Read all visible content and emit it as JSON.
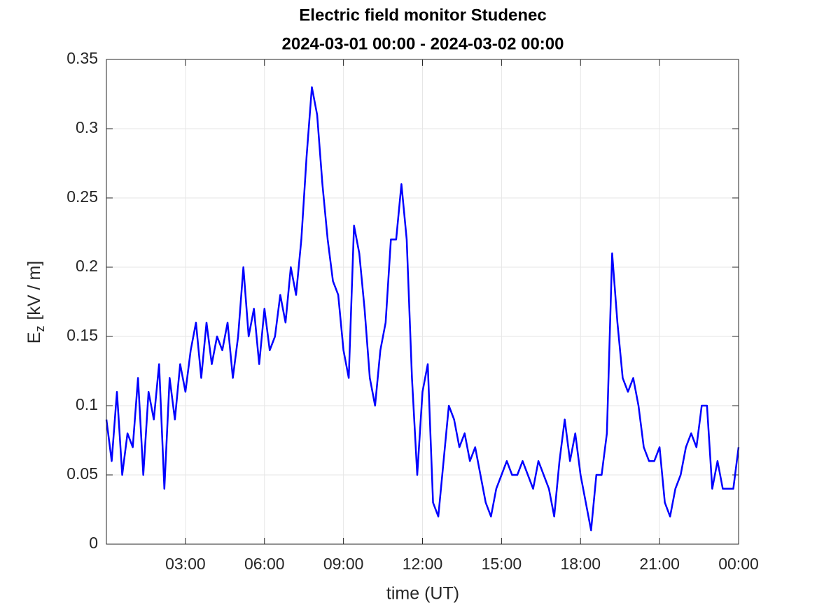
{
  "chart_data": {
    "type": "line",
    "title": "Electric field monitor Studenec",
    "subtitle": "2024-03-01 00:00 - 2024-03-02 00:00",
    "xlabel": "time (UT)",
    "ylabel_parts": [
      "E",
      "z",
      "[kV / m]"
    ],
    "color": "#0000ff",
    "grid": true,
    "xlim": [
      0,
      24
    ],
    "ylim": [
      0,
      0.35
    ],
    "xticks": [
      {
        "value": 3,
        "label": "03:00"
      },
      {
        "value": 6,
        "label": "06:00"
      },
      {
        "value": 9,
        "label": "09:00"
      },
      {
        "value": 12,
        "label": "12:00"
      },
      {
        "value": 15,
        "label": "15:00"
      },
      {
        "value": 18,
        "label": "18:00"
      },
      {
        "value": 21,
        "label": "21:00"
      },
      {
        "value": 24,
        "label": "00:00"
      }
    ],
    "yticks": [
      0,
      0.05,
      0.1,
      0.15,
      0.2,
      0.25,
      0.3,
      0.35
    ],
    "x": [
      0,
      0.2,
      0.4,
      0.6,
      0.8,
      1,
      1.2,
      1.4,
      1.6,
      1.8,
      2,
      2.2,
      2.4,
      2.6,
      2.8,
      3,
      3.2,
      3.4,
      3.6,
      3.8,
      4,
      4.2,
      4.4,
      4.6,
      4.8,
      5,
      5.2,
      5.4,
      5.6,
      5.8,
      6,
      6.2,
      6.4,
      6.6,
      6.8,
      7,
      7.2,
      7.4,
      7.6,
      7.8,
      8,
      8.2,
      8.4,
      8.6,
      8.8,
      9,
      9.2,
      9.4,
      9.6,
      9.8,
      10,
      10.2,
      10.4,
      10.6,
      10.8,
      11,
      11.2,
      11.4,
      11.6,
      11.8,
      12,
      12.2,
      12.4,
      12.6,
      12.8,
      13,
      13.2,
      13.4,
      13.6,
      13.8,
      14,
      14.2,
      14.4,
      14.6,
      14.8,
      15,
      15.2,
      15.4,
      15.6,
      15.8,
      16,
      16.2,
      16.4,
      16.6,
      16.8,
      17,
      17.2,
      17.4,
      17.6,
      17.8,
      18,
      18.2,
      18.4,
      18.6,
      18.8,
      19,
      19.2,
      19.4,
      19.6,
      19.8,
      20,
      20.2,
      20.4,
      20.6,
      20.8,
      21,
      21.2,
      21.4,
      21.6,
      21.8,
      22,
      22.2,
      22.4,
      22.6,
      22.8,
      23,
      23.2,
      23.4,
      23.6,
      23.8,
      24
    ],
    "values": [
      0.09,
      0.06,
      0.11,
      0.05,
      0.08,
      0.07,
      0.12,
      0.05,
      0.11,
      0.09,
      0.13,
      0.04,
      0.12,
      0.09,
      0.13,
      0.11,
      0.14,
      0.16,
      0.12,
      0.16,
      0.13,
      0.15,
      0.14,
      0.16,
      0.12,
      0.15,
      0.2,
      0.15,
      0.17,
      0.13,
      0.17,
      0.14,
      0.15,
      0.18,
      0.16,
      0.2,
      0.18,
      0.22,
      0.28,
      0.33,
      0.31,
      0.26,
      0.22,
      0.19,
      0.18,
      0.14,
      0.12,
      0.23,
      0.21,
      0.17,
      0.12,
      0.1,
      0.14,
      0.16,
      0.22,
      0.22,
      0.26,
      0.22,
      0.12,
      0.05,
      0.11,
      0.13,
      0.03,
      0.02,
      0.06,
      0.1,
      0.09,
      0.07,
      0.08,
      0.06,
      0.07,
      0.05,
      0.03,
      0.02,
      0.04,
      0.05,
      0.06,
      0.05,
      0.05,
      0.06,
      0.05,
      0.04,
      0.06,
      0.05,
      0.04,
      0.02,
      0.06,
      0.09,
      0.06,
      0.08,
      0.05,
      0.03,
      0.01,
      0.05,
      0.05,
      0.08,
      0.21,
      0.16,
      0.12,
      0.11,
      0.12,
      0.1,
      0.07,
      0.06,
      0.06,
      0.07,
      0.03,
      0.02,
      0.04,
      0.05,
      0.07,
      0.08,
      0.07,
      0.1,
      0.1,
      0.04,
      0.06,
      0.04,
      0.04,
      0.04,
      0.07
    ]
  }
}
